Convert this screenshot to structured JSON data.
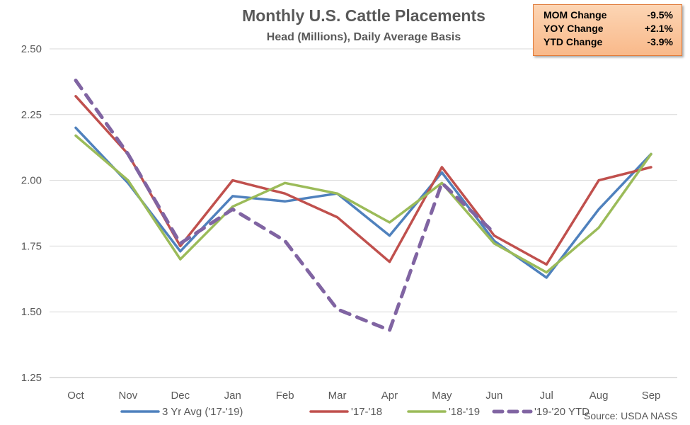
{
  "chart_data": {
    "type": "line",
    "title": "Monthly U.S. Cattle Placements",
    "subtitle": "Head (Millions), Daily Average Basis",
    "categories": [
      "Oct",
      "Nov",
      "Dec",
      "Jan",
      "Feb",
      "Mar",
      "Apr",
      "May",
      "Jun",
      "Jul",
      "Aug",
      "Sep"
    ],
    "yticks": [
      "1.25",
      "1.50",
      "1.75",
      "2.00",
      "2.25",
      "2.50"
    ],
    "ylim": [
      1.25,
      2.5
    ],
    "grid": true,
    "series": [
      {
        "name": "3 Yr Avg ('17-'19)",
        "color": "#4f81bd",
        "dashed": false,
        "values": [
          2.2,
          1.99,
          1.73,
          1.94,
          1.92,
          1.95,
          1.79,
          2.03,
          1.77,
          1.63,
          1.89,
          2.1
        ]
      },
      {
        "name": "'17-'18",
        "color": "#c0504d",
        "dashed": false,
        "values": [
          2.32,
          2.1,
          1.75,
          2.0,
          1.95,
          1.86,
          1.69,
          2.05,
          1.79,
          1.68,
          2.0,
          2.05
        ]
      },
      {
        "name": "'18-'19",
        "color": "#9bbb59",
        "dashed": false,
        "values": [
          2.17,
          2.0,
          1.7,
          1.9,
          1.99,
          1.95,
          1.84,
          1.99,
          1.76,
          1.65,
          1.82,
          2.1
        ]
      },
      {
        "name": "'19-'20 YTD",
        "color": "#8064a2",
        "dashed": true,
        "values": [
          2.38,
          2.1,
          1.76,
          1.89,
          1.77,
          1.51,
          1.43,
          1.99,
          1.8,
          null,
          null,
          null
        ]
      }
    ],
    "legend_position": "bottom",
    "source": "Source: USDA NASS"
  },
  "stats": [
    {
      "label": "MOM Change",
      "value": "-9.5%"
    },
    {
      "label": "YOY Change",
      "value": "+2.1%"
    },
    {
      "label": "YTD Change",
      "value": "-3.9%"
    }
  ],
  "colors": {
    "grid": "#d9d9d9",
    "axis": "#bfbfbf",
    "text": "#595959",
    "box_border": "#e07b39"
  }
}
